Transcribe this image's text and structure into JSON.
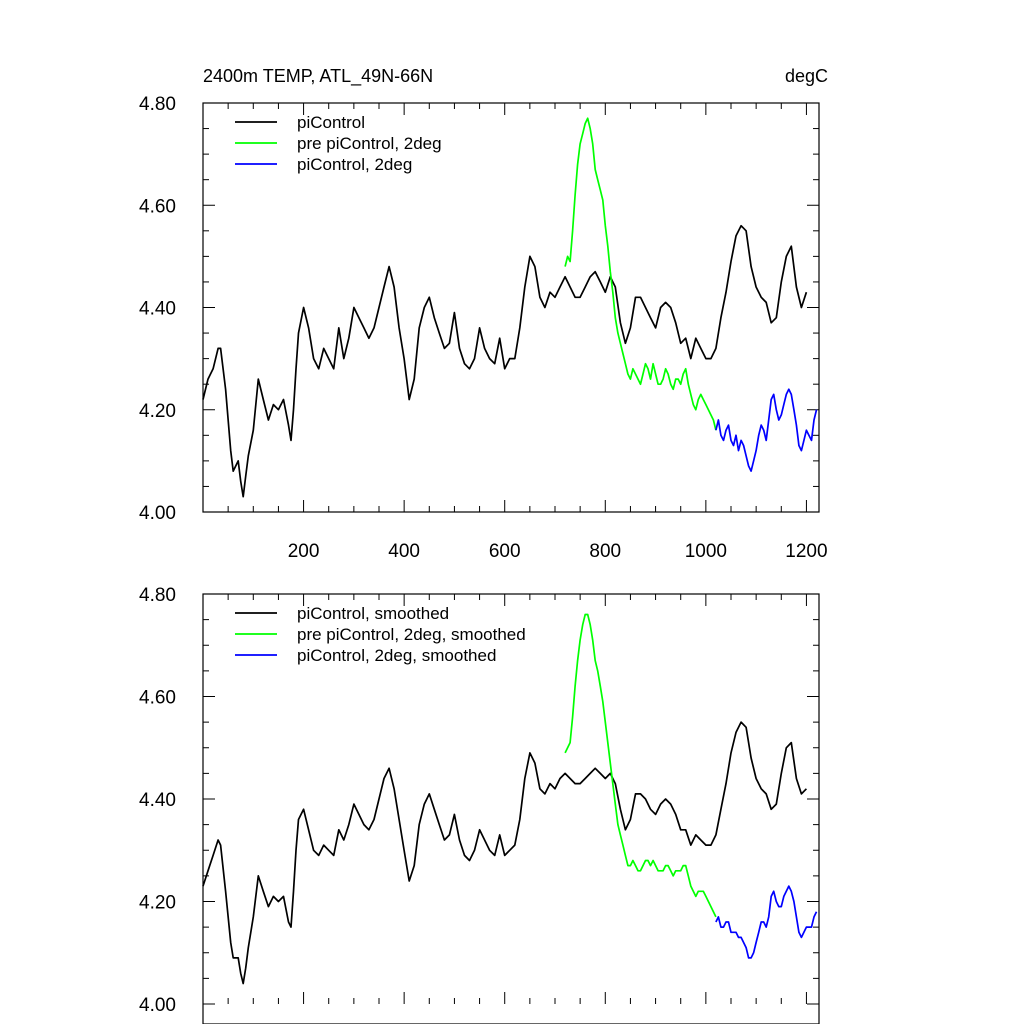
{
  "chart_data": [
    {
      "type": "line",
      "title": "2400m TEMP, ATL_49N-66N",
      "units": "degC",
      "xlim": [
        0,
        1225
      ],
      "ylim": [
        4.0,
        4.8
      ],
      "x_ticks": [
        200,
        400,
        600,
        800,
        1000,
        1200
      ],
      "x_tick_labels": [
        "200",
        "400",
        "600",
        "800",
        "1000",
        "1200"
      ],
      "y_ticks": [
        4.0,
        4.2,
        4.4,
        4.6,
        4.8
      ],
      "y_tick_labels": [
        "4.00",
        "4.20",
        "4.40",
        "4.60",
        "4.80"
      ],
      "legend_position": "top-left",
      "series": [
        {
          "name": "piControl",
          "color": "#000000",
          "x": [
            0,
            10,
            20,
            30,
            35,
            45,
            55,
            60,
            70,
            75,
            80,
            85,
            90,
            100,
            110,
            120,
            130,
            140,
            150,
            160,
            170,
            175,
            180,
            185,
            190,
            200,
            210,
            220,
            230,
            240,
            250,
            260,
            270,
            280,
            290,
            300,
            310,
            320,
            330,
            340,
            350,
            360,
            370,
            380,
            390,
            400,
            410,
            420,
            430,
            440,
            450,
            460,
            470,
            480,
            490,
            500,
            510,
            520,
            530,
            540,
            550,
            560,
            570,
            580,
            590,
            600,
            610,
            620,
            630,
            640,
            650,
            660,
            670,
            680,
            690,
            700,
            710,
            720,
            730,
            740,
            750,
            760,
            770,
            780,
            790,
            800,
            810,
            820,
            830,
            840,
            850,
            860,
            870,
            880,
            890,
            900,
            910,
            920,
            930,
            940,
            950,
            960,
            970,
            980,
            990,
            1000,
            1010,
            1020,
            1030,
            1040,
            1050,
            1060,
            1070,
            1080,
            1090,
            1100,
            1110,
            1120,
            1130,
            1140,
            1150,
            1160,
            1170,
            1180,
            1190,
            1200
          ],
          "y": [
            4.22,
            4.26,
            4.28,
            4.32,
            4.32,
            4.24,
            4.12,
            4.08,
            4.1,
            4.06,
            4.03,
            4.07,
            4.11,
            4.16,
            4.26,
            4.22,
            4.18,
            4.21,
            4.2,
            4.22,
            4.17,
            4.14,
            4.2,
            4.28,
            4.35,
            4.4,
            4.36,
            4.3,
            4.28,
            4.32,
            4.3,
            4.28,
            4.36,
            4.3,
            4.34,
            4.4,
            4.38,
            4.36,
            4.34,
            4.36,
            4.4,
            4.44,
            4.48,
            4.44,
            4.36,
            4.3,
            4.22,
            4.26,
            4.36,
            4.4,
            4.42,
            4.38,
            4.35,
            4.32,
            4.33,
            4.39,
            4.32,
            4.29,
            4.28,
            4.3,
            4.36,
            4.32,
            4.3,
            4.29,
            4.34,
            4.28,
            4.3,
            4.3,
            4.36,
            4.44,
            4.5,
            4.48,
            4.42,
            4.4,
            4.43,
            4.42,
            4.44,
            4.46,
            4.44,
            4.42,
            4.42,
            4.44,
            4.46,
            4.47,
            4.45,
            4.43,
            4.46,
            4.44,
            4.37,
            4.33,
            4.36,
            4.42,
            4.42,
            4.4,
            4.38,
            4.36,
            4.4,
            4.41,
            4.4,
            4.37,
            4.33,
            4.34,
            4.3,
            4.34,
            4.32,
            4.3,
            4.3,
            4.32,
            4.38,
            4.43,
            4.49,
            4.54,
            4.56,
            4.55,
            4.48,
            4.44,
            4.42,
            4.41,
            4.37,
            4.38,
            4.45,
            4.5,
            4.52,
            4.44,
            4.4,
            4.43
          ]
        },
        {
          "name": "pre piControl, 2deg",
          "color": "#00ff00",
          "x": [
            720,
            725,
            730,
            735,
            740,
            745,
            750,
            755,
            760,
            765,
            770,
            775,
            780,
            785,
            790,
            795,
            800,
            805,
            810,
            815,
            820,
            825,
            830,
            835,
            840,
            845,
            850,
            855,
            860,
            865,
            870,
            875,
            880,
            885,
            890,
            895,
            900,
            905,
            910,
            915,
            920,
            925,
            930,
            935,
            940,
            945,
            950,
            955,
            960,
            965,
            970,
            975,
            980,
            985,
            990,
            995,
            1000,
            1005,
            1010,
            1015,
            1020
          ],
          "y": [
            4.48,
            4.5,
            4.49,
            4.55,
            4.62,
            4.68,
            4.72,
            4.74,
            4.76,
            4.77,
            4.75,
            4.72,
            4.67,
            4.65,
            4.63,
            4.61,
            4.56,
            4.52,
            4.47,
            4.43,
            4.38,
            4.35,
            4.33,
            4.31,
            4.29,
            4.27,
            4.26,
            4.28,
            4.27,
            4.26,
            4.25,
            4.27,
            4.29,
            4.28,
            4.26,
            4.29,
            4.27,
            4.25,
            4.25,
            4.26,
            4.28,
            4.27,
            4.25,
            4.24,
            4.26,
            4.26,
            4.25,
            4.27,
            4.28,
            4.25,
            4.23,
            4.21,
            4.2,
            4.22,
            4.23,
            4.22,
            4.21,
            4.2,
            4.19,
            4.18,
            4.16
          ]
        },
        {
          "name": "piControl, 2deg",
          "color": "#0000ff",
          "x": [
            1020,
            1025,
            1030,
            1035,
            1040,
            1045,
            1050,
            1055,
            1060,
            1065,
            1070,
            1075,
            1080,
            1085,
            1090,
            1095,
            1100,
            1105,
            1110,
            1115,
            1120,
            1125,
            1130,
            1135,
            1140,
            1145,
            1150,
            1155,
            1160,
            1165,
            1170,
            1175,
            1180,
            1185,
            1190,
            1195,
            1200,
            1205,
            1210,
            1215,
            1220
          ],
          "y": [
            4.16,
            4.18,
            4.15,
            4.14,
            4.16,
            4.17,
            4.14,
            4.13,
            4.15,
            4.12,
            4.14,
            4.13,
            4.11,
            4.09,
            4.08,
            4.1,
            4.12,
            4.15,
            4.17,
            4.16,
            4.14,
            4.18,
            4.22,
            4.23,
            4.2,
            4.18,
            4.19,
            4.21,
            4.23,
            4.24,
            4.23,
            4.2,
            4.17,
            4.13,
            4.12,
            4.14,
            4.16,
            4.15,
            4.14,
            4.18,
            4.2
          ]
        }
      ]
    },
    {
      "type": "line",
      "xlim": [
        0,
        1225
      ],
      "ylim": [
        4.0,
        4.8
      ],
      "y_ticks": [
        4.0,
        4.2,
        4.4,
        4.6,
        4.8
      ],
      "y_tick_labels": [
        "4.00",
        "4.20",
        "4.40",
        "4.60",
        "4.80"
      ],
      "legend_position": "top-left",
      "series": [
        {
          "name": "piControl, smoothed",
          "color": "#000000",
          "x": [
            0,
            10,
            20,
            30,
            35,
            45,
            55,
            60,
            70,
            75,
            80,
            85,
            90,
            100,
            110,
            120,
            130,
            140,
            150,
            160,
            170,
            175,
            180,
            185,
            190,
            200,
            210,
            220,
            230,
            240,
            250,
            260,
            270,
            280,
            290,
            300,
            310,
            320,
            330,
            340,
            350,
            360,
            370,
            380,
            390,
            400,
            410,
            420,
            430,
            440,
            450,
            460,
            470,
            480,
            490,
            500,
            510,
            520,
            530,
            540,
            550,
            560,
            570,
            580,
            590,
            600,
            610,
            620,
            630,
            640,
            650,
            660,
            670,
            680,
            690,
            700,
            710,
            720,
            730,
            740,
            750,
            760,
            770,
            780,
            790,
            800,
            810,
            820,
            830,
            840,
            850,
            860,
            870,
            880,
            890,
            900,
            910,
            920,
            930,
            940,
            950,
            960,
            970,
            980,
            990,
            1000,
            1010,
            1020,
            1030,
            1040,
            1050,
            1060,
            1070,
            1080,
            1090,
            1100,
            1110,
            1120,
            1130,
            1140,
            1150,
            1160,
            1170,
            1180,
            1190,
            1200
          ],
          "y": [
            4.23,
            4.26,
            4.29,
            4.32,
            4.31,
            4.22,
            4.12,
            4.09,
            4.09,
            4.06,
            4.04,
            4.07,
            4.11,
            4.17,
            4.25,
            4.22,
            4.19,
            4.21,
            4.2,
            4.21,
            4.16,
            4.15,
            4.22,
            4.3,
            4.36,
            4.38,
            4.34,
            4.3,
            4.29,
            4.31,
            4.3,
            4.29,
            4.34,
            4.32,
            4.35,
            4.39,
            4.37,
            4.35,
            4.34,
            4.36,
            4.4,
            4.44,
            4.46,
            4.42,
            4.36,
            4.3,
            4.24,
            4.27,
            4.35,
            4.39,
            4.41,
            4.38,
            4.35,
            4.32,
            4.33,
            4.37,
            4.32,
            4.29,
            4.28,
            4.3,
            4.34,
            4.32,
            4.3,
            4.29,
            4.33,
            4.29,
            4.3,
            4.31,
            4.36,
            4.44,
            4.49,
            4.47,
            4.42,
            4.41,
            4.43,
            4.42,
            4.44,
            4.45,
            4.44,
            4.43,
            4.43,
            4.44,
            4.45,
            4.46,
            4.45,
            4.44,
            4.45,
            4.43,
            4.38,
            4.34,
            4.36,
            4.41,
            4.41,
            4.4,
            4.38,
            4.37,
            4.39,
            4.4,
            4.39,
            4.37,
            4.34,
            4.34,
            4.31,
            4.33,
            4.32,
            4.31,
            4.31,
            4.33,
            4.38,
            4.43,
            4.49,
            4.53,
            4.55,
            4.54,
            4.48,
            4.44,
            4.42,
            4.41,
            4.38,
            4.39,
            4.45,
            4.5,
            4.51,
            4.44,
            4.41,
            4.42
          ]
        },
        {
          "name": "pre piControl, 2deg, smoothed",
          "color": "#00ff00",
          "x": [
            720,
            725,
            730,
            735,
            740,
            745,
            750,
            755,
            760,
            765,
            770,
            775,
            780,
            785,
            790,
            795,
            800,
            805,
            810,
            815,
            820,
            825,
            830,
            835,
            840,
            845,
            850,
            855,
            860,
            865,
            870,
            875,
            880,
            885,
            890,
            895,
            900,
            905,
            910,
            915,
            920,
            925,
            930,
            935,
            940,
            945,
            950,
            955,
            960,
            965,
            970,
            975,
            980,
            985,
            990,
            995,
            1000,
            1005,
            1010,
            1015,
            1020
          ],
          "y": [
            4.49,
            4.5,
            4.51,
            4.56,
            4.62,
            4.67,
            4.71,
            4.74,
            4.76,
            4.76,
            4.74,
            4.71,
            4.67,
            4.65,
            4.62,
            4.59,
            4.55,
            4.51,
            4.47,
            4.43,
            4.39,
            4.35,
            4.33,
            4.31,
            4.29,
            4.27,
            4.27,
            4.28,
            4.27,
            4.26,
            4.26,
            4.27,
            4.28,
            4.28,
            4.27,
            4.28,
            4.27,
            4.26,
            4.26,
            4.26,
            4.27,
            4.27,
            4.26,
            4.25,
            4.26,
            4.26,
            4.26,
            4.27,
            4.27,
            4.25,
            4.23,
            4.22,
            4.21,
            4.22,
            4.22,
            4.22,
            4.21,
            4.2,
            4.19,
            4.18,
            4.17
          ]
        },
        {
          "name": "piControl, 2deg, smoothed",
          "color": "#0000ff",
          "x": [
            1020,
            1025,
            1030,
            1035,
            1040,
            1045,
            1050,
            1055,
            1060,
            1065,
            1070,
            1075,
            1080,
            1085,
            1090,
            1095,
            1100,
            1105,
            1110,
            1115,
            1120,
            1125,
            1130,
            1135,
            1140,
            1145,
            1150,
            1155,
            1160,
            1165,
            1170,
            1175,
            1180,
            1185,
            1190,
            1195,
            1200,
            1205,
            1210,
            1215,
            1220
          ],
          "y": [
            4.16,
            4.17,
            4.15,
            4.15,
            4.16,
            4.16,
            4.14,
            4.14,
            4.14,
            4.13,
            4.13,
            4.12,
            4.11,
            4.09,
            4.09,
            4.1,
            4.12,
            4.14,
            4.16,
            4.16,
            4.15,
            4.17,
            4.21,
            4.22,
            4.2,
            4.19,
            4.19,
            4.21,
            4.22,
            4.23,
            4.22,
            4.2,
            4.17,
            4.14,
            4.13,
            4.14,
            4.15,
            4.15,
            4.15,
            4.17,
            4.18
          ]
        }
      ]
    }
  ]
}
